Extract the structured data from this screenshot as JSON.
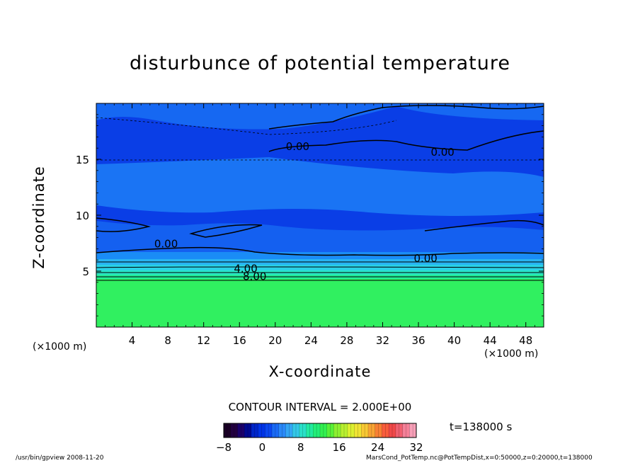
{
  "chart_data": {
    "type": "heatmap",
    "title": "disturbunce of potential temperature",
    "xlabel": "X-coordinate",
    "ylabel": "Z-coordinate",
    "x_unit_left": "(×1000 m)",
    "x_unit_right": "(×1000 m)",
    "xlim": [
      0,
      50
    ],
    "ylim": [
      0,
      20
    ],
    "x_ticks": [
      "4",
      "8",
      "12",
      "16",
      "20",
      "24",
      "28",
      "32",
      "36",
      "40",
      "44",
      "48"
    ],
    "x_tick_values": [
      4,
      8,
      12,
      16,
      20,
      24,
      28,
      32,
      36,
      40,
      44,
      48
    ],
    "y_ticks": [
      "5",
      "10",
      "15"
    ],
    "y_tick_values": [
      5,
      10,
      15
    ],
    "contour_labels": [
      {
        "text": "0.00",
        "x": 22.5,
        "y": 16.2
      },
      {
        "text": "0.00",
        "x": 38.7,
        "y": 15.7
      },
      {
        "text": "0.00",
        "x": 7.8,
        "y": 7.5
      },
      {
        "text": "0.00",
        "x": 36.8,
        "y": 6.2
      },
      {
        "text": "4.00",
        "x": 16.7,
        "y": 5.3
      },
      {
        "text": "8.00",
        "x": 17.7,
        "y": 4.6
      }
    ],
    "contour_interval": "CONTOUR INTERVAL = 2.000E+00",
    "time": "t=138000 s",
    "colorbar": {
      "ticks": [
        "−8",
        "0",
        "8",
        "16",
        "24",
        "32"
      ],
      "tick_values": [
        -8,
        0,
        8,
        16,
        24,
        32
      ],
      "range": [
        -8,
        32
      ],
      "colors": [
        "#1a0026",
        "#22003f",
        "#1b006a",
        "#000890",
        "#0025c8",
        "#0033e6",
        "#0a47f0",
        "#1a6af5",
        "#2a88f8",
        "#34a6f5",
        "#34c8e8",
        "#2ae0c8",
        "#22eaa0",
        "#22ee78",
        "#32f050",
        "#58f038",
        "#8cf030",
        "#b8f030",
        "#dcf030",
        "#f0e434",
        "#f8c834",
        "#f8a434",
        "#f88034",
        "#f85c3c",
        "#f04848",
        "#f06070",
        "#f48098",
        "#f8a0b8"
      ]
    },
    "field_colors": {
      "upper_deep_blue": "#0a40e8",
      "mid_blue": "#1660f0",
      "cyan_band": "#2ad0e8",
      "teal_band": "#2aeac0",
      "ground_green": "#30f060"
    }
  },
  "footer": {
    "left": "/usr/bin/gpview   2008-11-20",
    "right": "MarsCond_PotTemp.nc@PotTempDist,x=0:50000,z=0:20000,t=138000"
  }
}
